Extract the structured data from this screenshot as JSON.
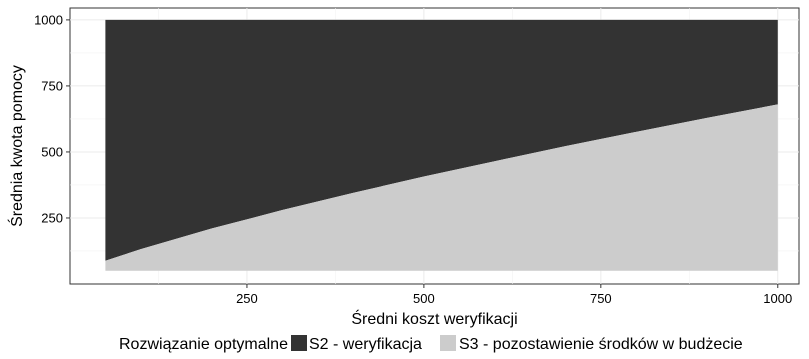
{
  "chart_data": {
    "type": "area",
    "title": "",
    "xlabel": "Średni koszt weryfikacji",
    "ylabel": "Średnia kwota pomocy",
    "xlim": [
      0,
      1030
    ],
    "ylim": [
      0,
      1045
    ],
    "x_ticks": [
      250,
      500,
      750,
      1000
    ],
    "y_ticks": [
      250,
      500,
      750,
      1000
    ],
    "grid": true,
    "legend_position": "bottom",
    "legend_title": "Rozwiązanie optymalne",
    "x": [
      50,
      100,
      200,
      300,
      400,
      500,
      600,
      700,
      800,
      900,
      1000
    ],
    "series": [
      {
        "name": "S2 - weryfikacja",
        "color": "#333333",
        "lower": [
          88,
          132,
          210,
          280,
          345,
          407,
          465,
          522,
          576,
          629,
          680
        ],
        "upper": [
          1000,
          1000,
          1000,
          1000,
          1000,
          1000,
          1000,
          1000,
          1000,
          1000,
          1000
        ]
      },
      {
        "name": "S3 - pozostawienie środków w budżecie",
        "color": "#cccccc",
        "lower": [
          50,
          50,
          50,
          50,
          50,
          50,
          50,
          50,
          50,
          50,
          50
        ],
        "upper": [
          88,
          132,
          210,
          280,
          345,
          407,
          465,
          522,
          576,
          629,
          680
        ]
      }
    ]
  }
}
